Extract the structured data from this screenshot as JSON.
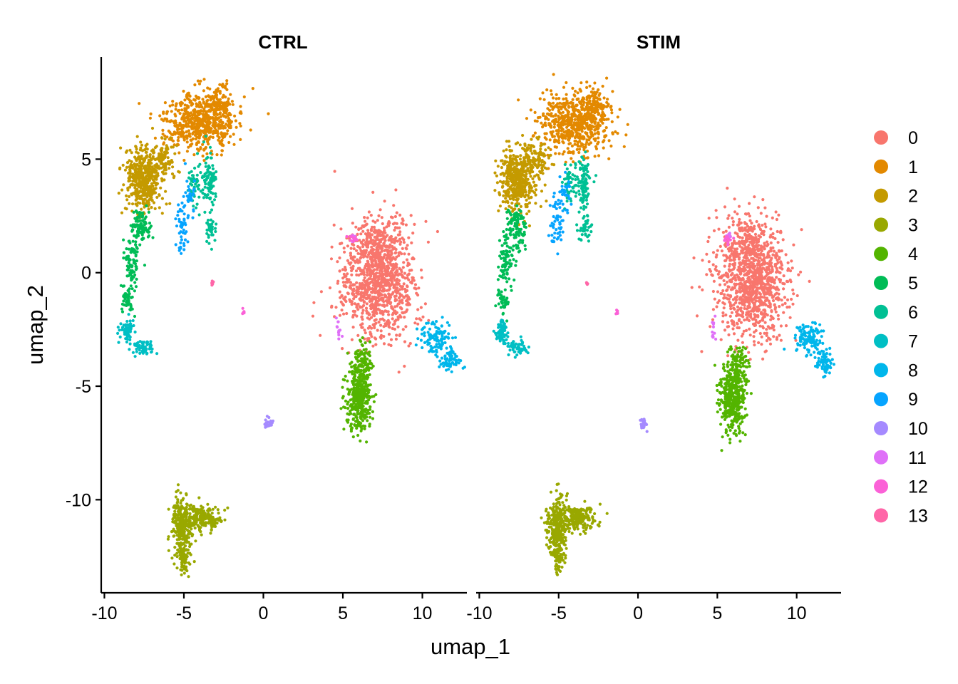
{
  "chart_data": {
    "type": "scatter",
    "xlabel": "umap_1",
    "ylabel": "umap_2",
    "xlim": [
      -10.2,
      12.8
    ],
    "ylim": [
      -14.1,
      9.5
    ],
    "x_ticks": [
      -10,
      -5,
      0,
      5,
      10
    ],
    "x_tick_labels": [
      "-10",
      "-5",
      "0",
      "5",
      "10"
    ],
    "y_ticks": [
      5,
      0,
      -5,
      -10
    ],
    "y_tick_labels": [
      "5",
      "0",
      "-5",
      "-10"
    ],
    "facets": [
      {
        "title": "CTRL",
        "seed": 17
      },
      {
        "title": "STIM",
        "seed": 91
      }
    ],
    "legend_position": "right",
    "point_counts_approximate": "thousands of cells per facet",
    "clusters": [
      {
        "label": "0",
        "color": "#F8766D",
        "shapes": [
          [
            7.2,
            -0.4,
            1.7,
            1.8,
            1000
          ],
          [
            6.9,
            1.2,
            0.9,
            0.9,
            150
          ]
        ]
      },
      {
        "label": "1",
        "color": "#E38900",
        "shapes": [
          [
            -4.0,
            6.6,
            1.6,
            0.95,
            600
          ],
          [
            -2.8,
            7.4,
            0.6,
            0.5,
            100
          ]
        ]
      },
      {
        "label": "2",
        "color": "#C49A00",
        "shapes": [
          [
            -7.6,
            4.1,
            0.8,
            1.0,
            450
          ],
          [
            -6.3,
            5.0,
            0.6,
            0.6,
            100
          ]
        ]
      },
      {
        "label": "3",
        "color": "#99A800",
        "shapes": [
          [
            -5.1,
            -11.2,
            0.45,
            1.0,
            300
          ],
          [
            -3.8,
            -10.8,
            0.8,
            0.4,
            200
          ],
          [
            -5.0,
            -12.6,
            0.2,
            0.55,
            60
          ]
        ]
      },
      {
        "label": "4",
        "color": "#53B400",
        "shapes": [
          [
            6.0,
            -5.5,
            0.55,
            1.1,
            400
          ],
          [
            6.3,
            -3.9,
            0.4,
            0.6,
            80
          ]
        ]
      },
      {
        "label": "5",
        "color": "#00BC56",
        "shapes": [
          [
            -7.7,
            2.0,
            0.45,
            0.6,
            110
          ],
          [
            -8.3,
            0.5,
            0.35,
            0.8,
            80
          ],
          [
            -8.5,
            -1.2,
            0.3,
            0.4,
            40
          ]
        ]
      },
      {
        "label": "6",
        "color": "#00C094",
        "shapes": [
          [
            -3.4,
            3.9,
            0.3,
            0.9,
            100
          ],
          [
            -3.3,
            1.9,
            0.25,
            0.4,
            40
          ],
          [
            -4.3,
            3.9,
            0.3,
            0.7,
            50
          ]
        ]
      },
      {
        "label": "7",
        "color": "#00BFC4",
        "shapes": [
          [
            -8.6,
            -2.6,
            0.3,
            0.35,
            70
          ],
          [
            -7.6,
            -3.3,
            0.5,
            0.25,
            60
          ]
        ]
      },
      {
        "label": "8",
        "color": "#00B6EB",
        "shapes": [
          [
            10.8,
            -2.9,
            0.6,
            0.5,
            110
          ],
          [
            11.8,
            -3.9,
            0.5,
            0.35,
            70
          ]
        ]
      },
      {
        "label": "9",
        "color": "#06A4FF",
        "shapes": [
          [
            -5.1,
            1.9,
            0.3,
            0.8,
            50
          ],
          [
            -4.6,
            3.4,
            0.3,
            0.6,
            30
          ]
        ]
      },
      {
        "label": "10",
        "color": "#A58AFF",
        "shapes": [
          [
            0.35,
            -6.65,
            0.2,
            0.15,
            25
          ]
        ]
      },
      {
        "label": "11",
        "color": "#DF70F8",
        "shapes": [
          [
            4.75,
            -2.6,
            0.15,
            0.35,
            12
          ],
          [
            5.7,
            1.6,
            0.15,
            0.15,
            10
          ]
        ]
      },
      {
        "label": "12",
        "color": "#FB61D7",
        "shapes": [
          [
            5.6,
            1.5,
            0.2,
            0.15,
            15
          ],
          [
            -1.3,
            -1.75,
            0.08,
            0.08,
            6
          ]
        ]
      },
      {
        "label": "13",
        "color": "#FF66A8",
        "shapes": [
          [
            -3.2,
            -0.5,
            0.05,
            0.1,
            5
          ]
        ]
      }
    ]
  }
}
